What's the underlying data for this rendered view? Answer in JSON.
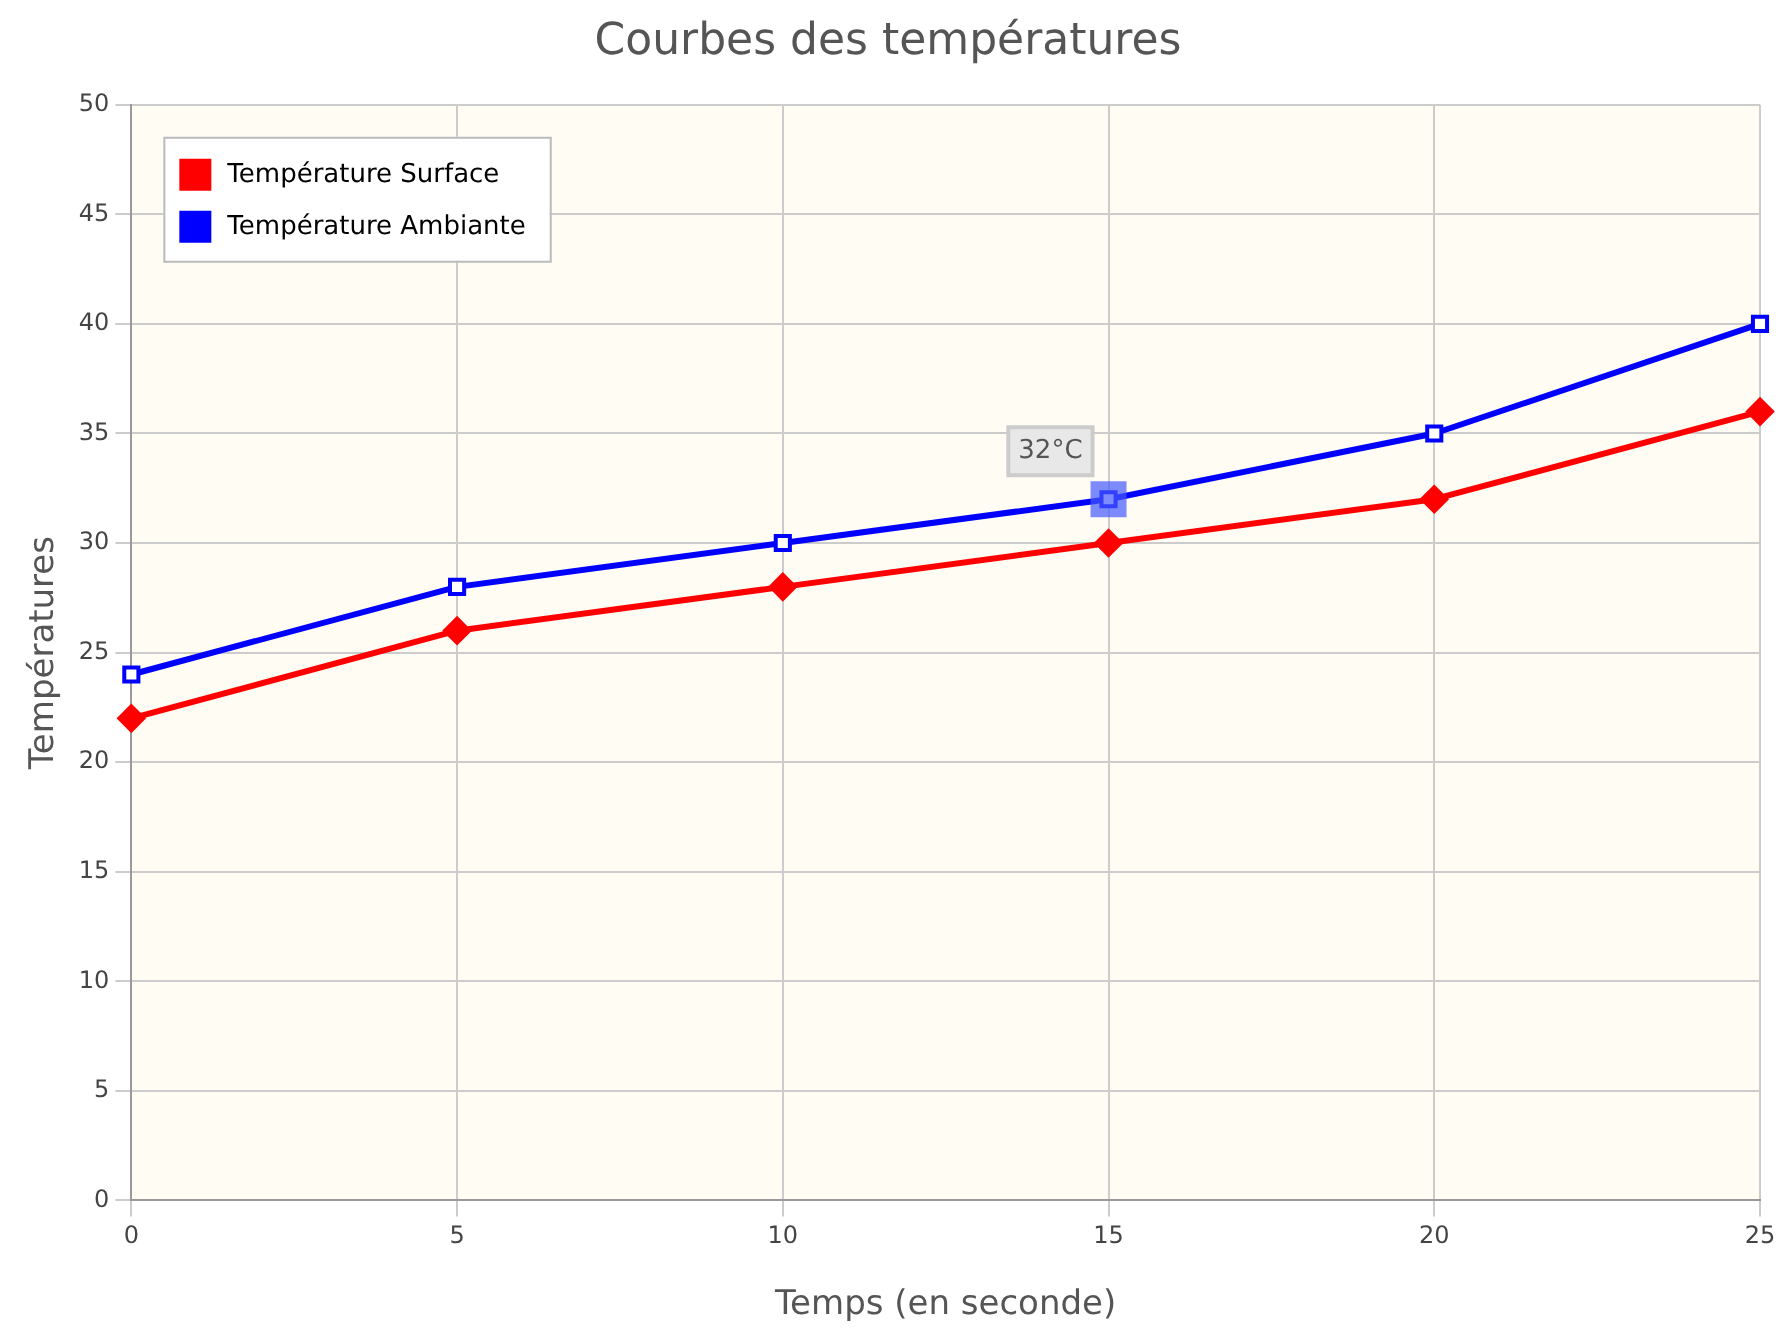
{
  "chart_data": {
    "type": "line",
    "title": "Courbes des températures",
    "xlabel": "Temps (en seconde)",
    "ylabel": "Températures",
    "x": [
      0,
      5,
      10,
      15,
      20,
      25
    ],
    "series": [
      {
        "name": "Température Surface",
        "color": "#ff0000",
        "marker": "diamond",
        "values": [
          22,
          26,
          28,
          30,
          32,
          36
        ]
      },
      {
        "name": "Température Ambiante",
        "color": "#0000ff",
        "marker": "square",
        "values": [
          24,
          28,
          30,
          32,
          35,
          40
        ]
      }
    ],
    "xlim": [
      0,
      25
    ],
    "xticks": [
      0,
      5,
      10,
      15,
      20,
      25
    ],
    "ylim": [
      0,
      50
    ],
    "yticks": [
      0,
      5,
      10,
      15,
      20,
      25,
      30,
      35,
      40,
      45,
      50
    ],
    "grid": true,
    "legend": "top left",
    "line_style": "solid",
    "annotations": [
      {
        "text": "32°C",
        "x": 15,
        "y": 32
      }
    ]
  }
}
